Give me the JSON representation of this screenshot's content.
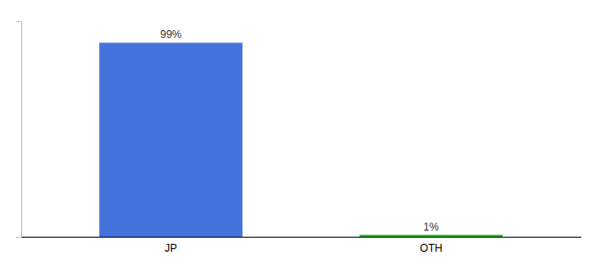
{
  "chart_data": {
    "type": "bar",
    "categories": [
      "JP",
      "OTH"
    ],
    "values": [
      99,
      1
    ],
    "value_labels": [
      "99%",
      "1%"
    ],
    "colors": [
      "#4472db",
      "#22bb22"
    ],
    "ylim": [
      0,
      110
    ],
    "data_labels": true,
    "tick_labels": "x",
    "grid": false
  }
}
